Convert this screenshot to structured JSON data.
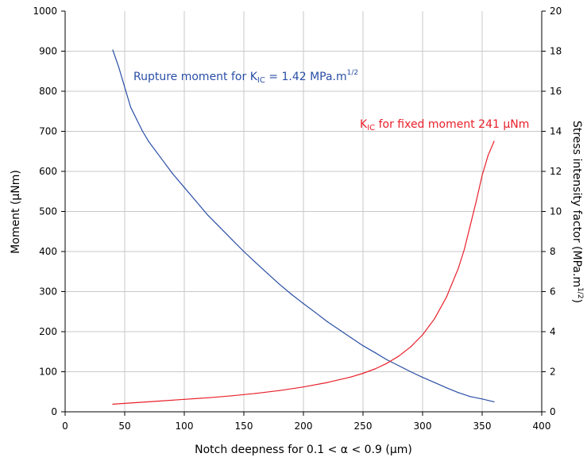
{
  "chart_data": {
    "type": "line",
    "xlabel": "Notch deepness for 0.1 < α < 0.9 (μm)",
    "ylabel_left": "Moment (μNm)",
    "ylabel_right": "Stress intensity factor (MPa.m",
    "ylabel_right_sup": "1/2",
    "ylabel_right_close": ")",
    "xlim": [
      0,
      400
    ],
    "ylim_left": [
      0,
      1000
    ],
    "ylim_right": [
      0,
      20
    ],
    "x_ticks": [
      0,
      50,
      100,
      150,
      200,
      250,
      300,
      350,
      400
    ],
    "y_left_ticks": [
      0,
      100,
      200,
      300,
      400,
      500,
      600,
      700,
      800,
      900,
      1000
    ],
    "y_right_ticks": [
      0,
      2,
      4,
      6,
      8,
      10,
      12,
      14,
      16,
      18,
      20
    ],
    "grid": true,
    "series": [
      {
        "axis": "left",
        "color": "#2a4ea6",
        "label_main": "Rupture moment for K",
        "label_sub": "IC",
        "label_rest": " = 1.42 MPa.m",
        "label_sup": "1/2",
        "x": [
          40,
          45,
          50,
          55,
          60,
          65,
          70,
          80,
          90,
          100,
          110,
          120,
          130,
          140,
          150,
          160,
          170,
          180,
          190,
          200,
          210,
          220,
          230,
          240,
          250,
          260,
          270,
          280,
          290,
          300,
          310,
          320,
          330,
          340,
          350,
          360
        ],
        "y": [
          903,
          860,
          810,
          760,
          730,
          700,
          675,
          635,
          595,
          560,
          525,
          490,
          460,
          430,
          400,
          372,
          345,
          318,
          293,
          270,
          248,
          225,
          205,
          185,
          165,
          148,
          130,
          115,
          100,
          86,
          73,
          60,
          48,
          38,
          32,
          25
        ]
      },
      {
        "axis": "right",
        "color": "#e8202a",
        "label_main": "K",
        "label_sub": "IC",
        "label_rest": " for fixed moment 241 μNm",
        "label_sup": "",
        "x": [
          40,
          60,
          80,
          100,
          120,
          140,
          160,
          180,
          200,
          220,
          240,
          250,
          260,
          270,
          280,
          290,
          300,
          310,
          320,
          330,
          335,
          340,
          345,
          350,
          355,
          360
        ],
        "y": [
          0.38,
          0.46,
          0.54,
          0.62,
          0.7,
          0.8,
          0.92,
          1.06,
          1.24,
          1.46,
          1.74,
          1.92,
          2.14,
          2.42,
          2.78,
          3.24,
          3.84,
          4.64,
          5.72,
          7.16,
          8.1,
          9.3,
          10.5,
          11.8,
          12.8,
          13.5
        ]
      }
    ]
  }
}
